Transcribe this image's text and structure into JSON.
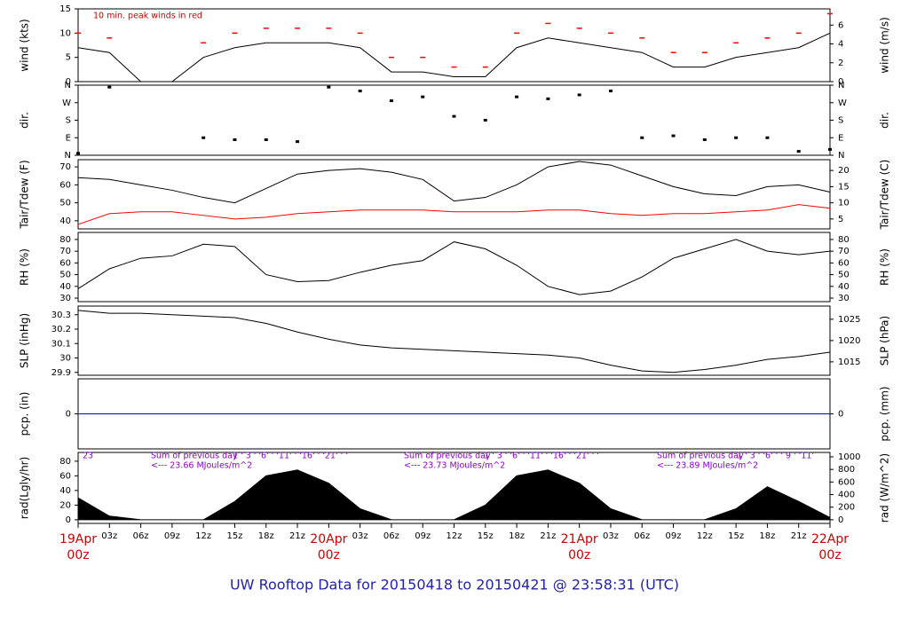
{
  "footer": {
    "title": "UW Rooftop Data for 20150418  to  20150421 @ 23:58:31  (UTC)"
  },
  "chart_data": [
    {
      "type": "line",
      "ylabel": "wind (kts)",
      "y2label": "wind (m/s)",
      "annotations": [
        "10 min. peak winds in red"
      ],
      "x": [
        0,
        3,
        6,
        9,
        12,
        15,
        18,
        21,
        24,
        27,
        30,
        33,
        36,
        39,
        42,
        45,
        48,
        51,
        54,
        57,
        60,
        63,
        66,
        69,
        72
      ],
      "xlim": [
        0,
        72
      ],
      "ylim": [
        0,
        15
      ],
      "yticks": [
        0,
        5,
        10,
        15
      ],
      "y2lim": [
        0,
        7.72
      ],
      "y2ticks": [
        0,
        2,
        4,
        6
      ],
      "series": [
        {
          "color": "#000000",
          "values": [
            7,
            6,
            0,
            0,
            5,
            7,
            8,
            8,
            8,
            7,
            2,
            2,
            1,
            1,
            7,
            9,
            8,
            7,
            6,
            3,
            3,
            5,
            6,
            7,
            10
          ]
        },
        {
          "color": "#ff0000",
          "marker": "dash",
          "values": [
            10,
            9,
            null,
            null,
            8,
            10,
            11,
            11,
            11,
            10,
            5,
            5,
            3,
            3,
            10,
            12,
            11,
            10,
            9,
            6,
            6,
            8,
            9,
            10,
            14
          ]
        }
      ]
    },
    {
      "type": "scatter",
      "ylabel": "dir.",
      "y2label": "dir.",
      "x": [
        0,
        3,
        6,
        9,
        12,
        15,
        18,
        21,
        24,
        27,
        30,
        33,
        36,
        39,
        42,
        45,
        48,
        51,
        54,
        57,
        60,
        63,
        66,
        69,
        72
      ],
      "xlim": [
        0,
        72
      ],
      "ylim": [
        0,
        360
      ],
      "yticks": [
        {
          "value": 0,
          "label": "N"
        },
        {
          "value": 90,
          "label": "E"
        },
        {
          "value": 180,
          "label": "S"
        },
        {
          "value": 270,
          "label": "W"
        },
        {
          "value": 360,
          "label": "N"
        }
      ],
      "y2lim": [
        0,
        360
      ],
      "y2ticks": [
        {
          "value": 0,
          "label": "N"
        },
        {
          "value": 90,
          "label": "E"
        },
        {
          "value": 180,
          "label": "S"
        },
        {
          "value": 270,
          "label": "W"
        },
        {
          "value": 360,
          "label": "N"
        }
      ],
      "series": [
        {
          "color": "#000000",
          "values": [
            10,
            350,
            null,
            null,
            90,
            80,
            80,
            70,
            350,
            330,
            280,
            300,
            200,
            180,
            300,
            290,
            310,
            330,
            90,
            100,
            80,
            90,
            90,
            20,
            30
          ]
        }
      ]
    },
    {
      "type": "line",
      "ylabel": "Tair/Tdew (F)",
      "y2label": "Tair/Tdew (C)",
      "x": [
        0,
        3,
        6,
        9,
        12,
        15,
        18,
        21,
        24,
        27,
        30,
        33,
        36,
        39,
        42,
        45,
        48,
        51,
        54,
        57,
        60,
        63,
        66,
        69,
        72
      ],
      "xlim": [
        0,
        72
      ],
      "ylim": [
        35.5,
        74
      ],
      "yticks": [
        40,
        50,
        60,
        70
      ],
      "y2lim": [
        1.94,
        23.33
      ],
      "y2ticks": [
        5,
        10,
        15,
        20
      ],
      "series": [
        {
          "color": "#000000",
          "values": [
            64,
            63,
            60,
            57,
            53,
            50,
            58,
            66,
            68,
            69,
            67,
            63,
            51,
            53,
            60,
            70,
            73,
            71,
            65,
            59,
            55,
            54,
            59,
            60,
            56
          ]
        },
        {
          "color": "#ff0000",
          "values": [
            38,
            44,
            45,
            45,
            43,
            41,
            42,
            44,
            45,
            46,
            46,
            46,
            45,
            45,
            45,
            46,
            46,
            44,
            43,
            44,
            44,
            45,
            46,
            49,
            47
          ]
        }
      ]
    },
    {
      "type": "line",
      "ylabel": "RH (%)",
      "y2label": "RH (%)",
      "x": [
        0,
        3,
        6,
        9,
        12,
        15,
        18,
        21,
        24,
        27,
        30,
        33,
        36,
        39,
        42,
        45,
        48,
        51,
        54,
        57,
        60,
        63,
        66,
        69,
        72
      ],
      "xlim": [
        0,
        72
      ],
      "ylim": [
        27,
        86
      ],
      "yticks": [
        30,
        40,
        50,
        60,
        70,
        80
      ],
      "y2lim": [
        27,
        86
      ],
      "y2ticks": [
        30,
        40,
        50,
        60,
        70,
        80
      ],
      "series": [
        {
          "color": "#000000",
          "values": [
            38,
            55,
            64,
            66,
            76,
            74,
            50,
            44,
            45,
            52,
            58,
            62,
            78,
            72,
            58,
            40,
            33,
            36,
            48,
            64,
            72,
            80,
            70,
            67,
            70
          ]
        }
      ]
    },
    {
      "type": "line",
      "ylabel": "SLP (inHg)",
      "y2label": "SLP (hPa)",
      "x": [
        0,
        3,
        6,
        9,
        12,
        15,
        18,
        21,
        24,
        27,
        30,
        33,
        36,
        39,
        42,
        45,
        48,
        51,
        54,
        57,
        60,
        63,
        66,
        69,
        72
      ],
      "xlim": [
        0,
        72
      ],
      "ylim": [
        29.88,
        30.36
      ],
      "yticks": [
        29.9,
        30.0,
        30.1,
        30.2,
        30.3
      ],
      "y2lim": [
        1011.85,
        1028.1
      ],
      "y2ticks": [
        1015,
        1020,
        1025
      ],
      "series": [
        {
          "color": "#000000",
          "values": [
            30.33,
            30.31,
            30.31,
            30.3,
            30.29,
            30.28,
            30.24,
            30.18,
            30.13,
            30.09,
            30.07,
            30.06,
            30.05,
            30.04,
            30.03,
            30.02,
            30.0,
            29.95,
            29.91,
            29.9,
            29.92,
            29.95,
            29.99,
            30.01,
            30.04
          ]
        }
      ]
    },
    {
      "type": "line",
      "ylabel": "pcp. (in)",
      "y2label": "pcp. (mm)",
      "x": [
        0,
        3,
        6,
        9,
        12,
        15,
        18,
        21,
        24,
        27,
        30,
        33,
        36,
        39,
        42,
        45,
        48,
        51,
        54,
        57,
        60,
        63,
        66,
        69,
        72
      ],
      "xlim": [
        0,
        72
      ],
      "ylim": [
        -1,
        1
      ],
      "yticks": [
        0
      ],
      "y2lim": [
        -25.4,
        25.4
      ],
      "y2ticks": [
        0
      ],
      "series": [
        {
          "color": "#0000cd",
          "values": [
            0,
            0,
            0,
            0,
            0,
            0,
            0,
            0,
            0,
            0,
            0,
            0,
            0,
            0,
            0,
            0,
            0,
            0,
            0,
            0,
            0,
            0,
            0,
            0,
            0
          ]
        }
      ]
    },
    {
      "type": "area",
      "ylabel": "rad(Lgly/hr)",
      "y2label": "rad (W/m^2)",
      "annotations": [
        "23",
        "Sum of previous day",
        "<--- 23.66 MJoules/m^2",
        "1 ' 3 ' '6' ' '11' ' '16' ' '21' ' '",
        "Sum of previous day",
        "<--- 23.73 MJoules/m^2",
        "1 ' 3 ' '6' ' '11' ' '16' ' '21' ' '",
        "Sum of previous day",
        "<--- 23.89 MJoules/m^2",
        "1 ' 3 ' '6' ' ' 9 ' '11'"
      ],
      "x": [
        0,
        3,
        6,
        9,
        12,
        15,
        18,
        21,
        24,
        27,
        30,
        33,
        36,
        39,
        42,
        45,
        48,
        51,
        54,
        57,
        60,
        63,
        66,
        69,
        72
      ],
      "xlim": [
        0,
        72
      ],
      "ylim": [
        -5,
        92
      ],
      "yticks": [
        0,
        20,
        40,
        60,
        80
      ],
      "y2lim": [
        -58.15,
        1069.96
      ],
      "y2ticks": [
        0,
        200,
        400,
        600,
        800,
        1000
      ],
      "xticks": [
        {
          "value": 0,
          "label": "00z"
        },
        {
          "value": 3,
          "label": "03z"
        },
        {
          "value": 6,
          "label": "06z"
        },
        {
          "value": 9,
          "label": "09z"
        },
        {
          "value": 12,
          "label": "12z"
        },
        {
          "value": 15,
          "label": "15z"
        },
        {
          "value": 18,
          "label": "18z"
        },
        {
          "value": 21,
          "label": "21z"
        },
        {
          "value": 24,
          "label": "00z"
        },
        {
          "value": 27,
          "label": "03z"
        },
        {
          "value": 30,
          "label": "06z"
        },
        {
          "value": 33,
          "label": "09z"
        },
        {
          "value": 36,
          "label": "12z"
        },
        {
          "value": 39,
          "label": "15z"
        },
        {
          "value": 42,
          "label": "18z"
        },
        {
          "value": 45,
          "label": "21z"
        },
        {
          "value": 48,
          "label": "00z"
        },
        {
          "value": 51,
          "label": "03z"
        },
        {
          "value": 54,
          "label": "06z"
        },
        {
          "value": 57,
          "label": "09z"
        },
        {
          "value": 60,
          "label": "12z"
        },
        {
          "value": 63,
          "label": "15z"
        },
        {
          "value": 66,
          "label": "18z"
        },
        {
          "value": 69,
          "label": "21z"
        },
        {
          "value": 72,
          "label": "00z"
        }
      ],
      "day_labels": [
        {
          "value": 0,
          "label": "19Apr"
        },
        {
          "value": 24,
          "label": "20Apr"
        },
        {
          "value": 48,
          "label": "21Apr"
        },
        {
          "value": 72,
          "label": "22Apr"
        }
      ],
      "series": [
        {
          "color": "#000000",
          "values": [
            30,
            5,
            0,
            0,
            0,
            25,
            60,
            68,
            50,
            15,
            0,
            0,
            0,
            20,
            60,
            68,
            50,
            15,
            0,
            0,
            0,
            15,
            45,
            25,
            3
          ]
        }
      ]
    }
  ]
}
